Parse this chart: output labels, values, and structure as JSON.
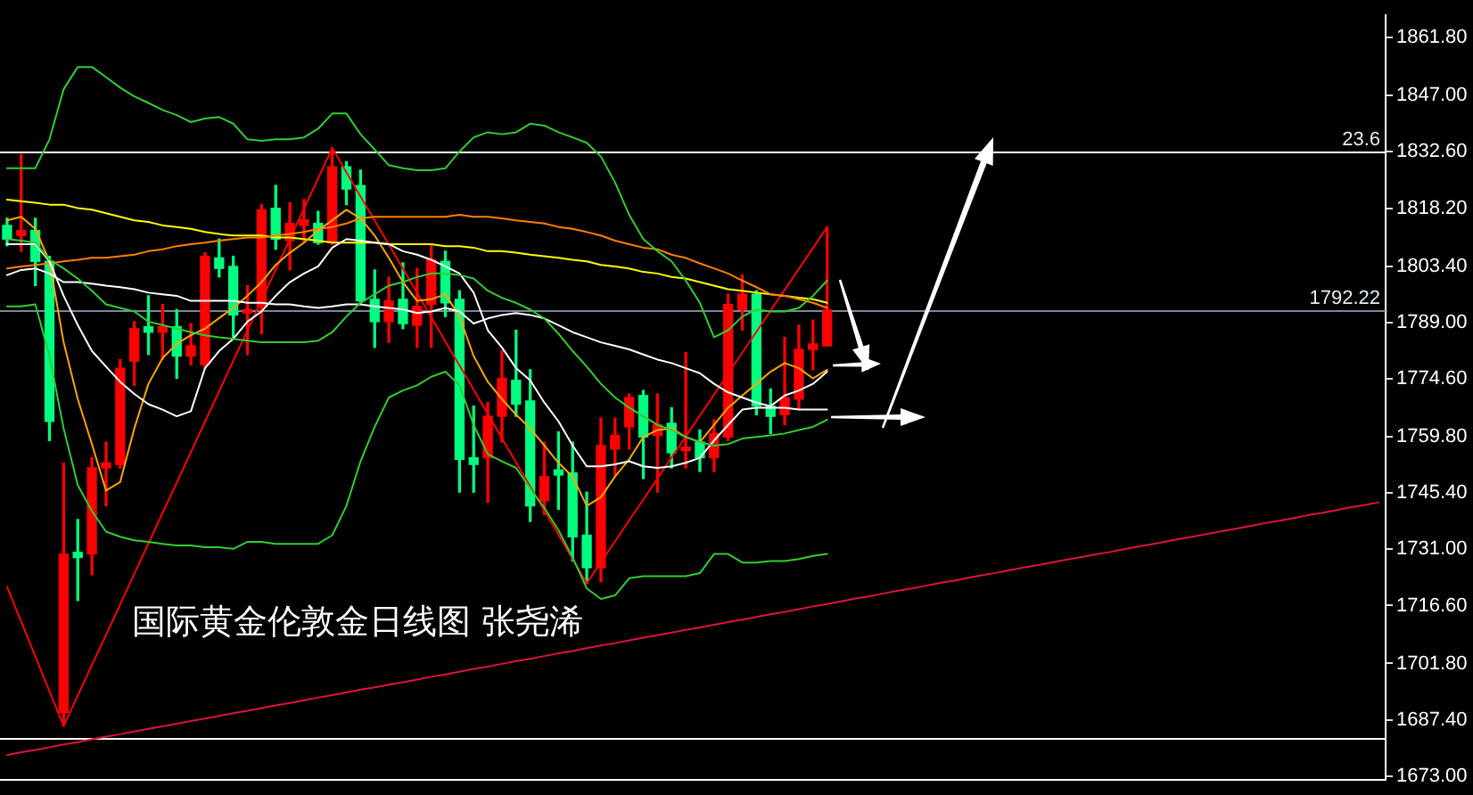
{
  "chart_data": {
    "type": "candlestick",
    "categories": [
      null,
      null,
      null,
      null,
      null,
      null,
      null,
      null,
      null,
      null,
      null,
      null,
      null,
      null,
      null,
      null,
      null,
      null,
      null,
      null,
      null,
      null,
      null,
      null,
      null,
      null,
      null,
      null,
      null,
      null,
      null,
      null,
      null,
      null,
      null,
      null,
      null,
      null,
      null,
      null,
      null,
      null,
      null,
      null,
      null,
      null,
      null,
      null,
      null,
      null,
      null,
      null,
      null,
      null,
      null,
      null,
      null,
      null,
      null,
      null,
      null,
      null,
      null,
      null,
      null,
      null,
      null,
      null,
      null,
      null,
      null,
      null,
      null,
      null,
      null,
      null,
      null,
      null,
      null,
      null,
      null,
      null,
      null,
      null,
      null,
      null,
      null,
      null,
      null,
      null,
      null,
      null,
      null,
      null,
      null,
      null,
      null,
      null
    ],
    "ohlc": [
      [
        1813.8,
        1815.6,
        1808.6,
        1810.3
      ],
      [
        1811.2,
        1831.9,
        1807.2,
        1812.5
      ],
      [
        1812.5,
        1815.6,
        1798.4,
        1804.6
      ],
      [
        1804.6,
        1805.9,
        1758.8,
        1763.7
      ],
      [
        1689.3,
        1753.1,
        1685.8,
        1729.8
      ],
      [
        1730.2,
        1738.6,
        1717.9,
        1728.9
      ],
      [
        1729.8,
        1754.4,
        1724.5,
        1751.8
      ],
      [
        1751.8,
        1758.4,
        1742.1,
        1753.1
      ],
      [
        1752.7,
        1779.5,
        1751.8,
        1777.3
      ],
      [
        1779.1,
        1789.2,
        1772.9,
        1787.4
      ],
      [
        1787.9,
        1795.8,
        1780.8,
        1786.5
      ],
      [
        1786.5,
        1793.6,
        1779.5,
        1787.9
      ],
      [
        1787.9,
        1792.3,
        1774.7,
        1780.4
      ],
      [
        1780.4,
        1788.7,
        1778.2,
        1783.0
      ],
      [
        1778.2,
        1806.8,
        1777.3,
        1805.9
      ],
      [
        1805.5,
        1810.3,
        1800.6,
        1802.8
      ],
      [
        1803.3,
        1805.9,
        1785.2,
        1790.9
      ],
      [
        1791.4,
        1798.4,
        1780.8,
        1792.3
      ],
      [
        1793.1,
        1819.1,
        1786.1,
        1817.8
      ],
      [
        1818.2,
        1824.0,
        1807.7,
        1810.3
      ],
      [
        1809.9,
        1819.6,
        1802.4,
        1814.3
      ],
      [
        1813.8,
        1820.4,
        1809.4,
        1815.2
      ],
      [
        1814.3,
        1817.4,
        1809.0,
        1809.4
      ],
      [
        1809.4,
        1833.6,
        1809.0,
        1828.8
      ],
      [
        1828.8,
        1830.1,
        1819.1,
        1823.1
      ],
      [
        1824.0,
        1827.9,
        1793.6,
        1794.5
      ],
      [
        1794.9,
        1802.4,
        1782.6,
        1789.2
      ],
      [
        1789.2,
        1800.6,
        1783.9,
        1794.5
      ],
      [
        1794.9,
        1804.2,
        1787.4,
        1788.7
      ],
      [
        1788.3,
        1802.8,
        1782.6,
        1793.1
      ],
      [
        1793.6,
        1808.6,
        1782.6,
        1805.0
      ],
      [
        1804.6,
        1807.2,
        1790.5,
        1794.0
      ],
      [
        1794.9,
        1797.1,
        1745.6,
        1754.0
      ],
      [
        1754.4,
        1767.6,
        1745.6,
        1752.7
      ],
      [
        1754.4,
        1768.5,
        1743.0,
        1765.0
      ],
      [
        1765.0,
        1781.7,
        1758.4,
        1774.7
      ],
      [
        1774.2,
        1787.0,
        1765.0,
        1768.1
      ],
      [
        1768.9,
        1776.9,
        1738.1,
        1742.1
      ],
      [
        1743.4,
        1758.4,
        1739.9,
        1749.6
      ],
      [
        1751.3,
        1761.0,
        1741.2,
        1750.0
      ],
      [
        1750.5,
        1758.4,
        1728.0,
        1734.2
      ],
      [
        1734.6,
        1745.6,
        1722.3,
        1726.3
      ],
      [
        1726.3,
        1764.5,
        1722.7,
        1757.5
      ],
      [
        1756.6,
        1764.5,
        1750.0,
        1760.1
      ],
      [
        1762.3,
        1770.7,
        1756.6,
        1769.8
      ],
      [
        1770.3,
        1771.6,
        1749.1,
        1759.7
      ],
      [
        1760.1,
        1770.7,
        1745.6,
        1762.8
      ],
      [
        1763.2,
        1767.2,
        1751.8,
        1755.7
      ],
      [
        1756.2,
        1781.3,
        1751.8,
        1757.1
      ],
      [
        1758.4,
        1761.5,
        1750.9,
        1754.4
      ],
      [
        1754.4,
        1764.1,
        1750.9,
        1760.6
      ],
      [
        1759.7,
        1796.2,
        1758.8,
        1793.6
      ],
      [
        1792.3,
        1801.1,
        1787.0,
        1796.2
      ],
      [
        1796.2,
        1797.1,
        1765.4,
        1767.6
      ],
      [
        1767.6,
        1772.0,
        1760.6,
        1765.0
      ],
      [
        1765.4,
        1785.2,
        1762.8,
        1769.8
      ],
      [
        1769.4,
        1788.3,
        1766.7,
        1782.1
      ],
      [
        1782.1,
        1789.6,
        1776.9,
        1783.5
      ],
      [
        1783.0,
        1813.4,
        1783.0,
        1792.2
      ],
      null,
      null,
      null,
      null,
      null,
      null,
      null,
      null,
      null,
      null,
      null,
      null,
      null,
      null,
      null,
      null,
      null,
      null,
      null,
      null,
      null,
      null,
      null,
      null,
      null,
      null,
      null,
      null,
      null,
      null,
      null,
      null,
      null,
      null,
      null,
      null,
      null,
      null,
      null
    ],
    "colors": [
      "#00ff7f",
      "#ff0000",
      "#00ff7f",
      "#00ff7f",
      "#ff0000",
      "#00ff7f",
      "#ff0000",
      "#ff0000",
      "#ff0000",
      "#ff0000",
      "#00ff7f",
      "#ff0000",
      "#00ff7f",
      "#ff0000",
      "#ff0000",
      "#00ff7f",
      "#00ff7f",
      "#ff0000",
      "#ff0000",
      "#00ff7f",
      "#ff0000",
      "#ff0000",
      "#00ff7f",
      "#ff0000",
      "#00ff7f",
      "#00ff7f",
      "#00ff7f",
      "#ff0000",
      "#00ff7f",
      "#ff0000",
      "#ff0000",
      "#00ff7f",
      "#00ff7f",
      "#00ff7f",
      "#ff0000",
      "#ff0000",
      "#00ff7f",
      "#00ff7f",
      "#ff0000",
      "#00ff7f",
      "#00ff7f",
      "#00ff7f",
      "#ff0000",
      "#ff0000",
      "#ff0000",
      "#00ff7f",
      "#ff0000",
      "#00ff7f",
      "#ff0000",
      "#00ff7f",
      "#ff0000",
      "#ff0000",
      "#ff0000",
      "#00ff7f",
      "#00ff7f",
      "#ff0000",
      "#ff0000",
      "#ff0000",
      "#ff0000",
      null,
      null,
      null,
      null,
      null,
      null,
      null,
      null,
      null,
      null,
      null,
      null,
      null,
      null,
      null,
      null,
      null,
      null,
      null,
      null,
      null,
      null,
      null,
      null,
      null,
      null,
      null,
      null,
      null,
      null,
      null,
      null,
      null,
      null,
      null,
      null,
      null,
      null,
      null
    ],
    "series": [
      {
        "type": "line",
        "color": "#32cd32",
        "values": [
          1828.4,
          1828.4,
          1828.4,
          1835.8,
          1848.6,
          1854.3,
          1854.3,
          1851.7,
          1849.0,
          1846.8,
          1845.1,
          1843.3,
          1842.0,
          1840.2,
          1841.1,
          1841.5,
          1839.8,
          1835.8,
          1835.4,
          1835.8,
          1835.8,
          1836.3,
          1838.5,
          1842.4,
          1842.4,
          1837.1,
          1833.2,
          1829.2,
          1828.4,
          1827.9,
          1827.9,
          1828.4,
          1832.7,
          1836.3,
          1837.6,
          1837.1,
          1837.6,
          1839.8,
          1839.3,
          1837.6,
          1836.3,
          1834.9,
          1831.4,
          1824.8,
          1816.5,
          1810.3,
          1807.2,
          1804.6,
          1799.7,
          1794.0,
          1785.2,
          1787.0,
          1790.5,
          1792.3,
          1791.8,
          1791.8,
          1792.7,
          1795.8,
          1799.7,
          null,
          null,
          null,
          null,
          null,
          null,
          null,
          null,
          null,
          null,
          null,
          null,
          null,
          null,
          null,
          null,
          null,
          null,
          null,
          null,
          null,
          null,
          null,
          null,
          null,
          null,
          null,
          null,
          null,
          null,
          null,
          null,
          null,
          null,
          null,
          null,
          null,
          null,
          null
        ]
      },
      {
        "type": "line",
        "color": "#32cd32",
        "values": [
          1810.3,
          1809.9,
          1809.4,
          1805.0,
          1802.8,
          1800.2,
          1797.1,
          1793.6,
          1792.7,
          1791.8,
          1789.2,
          1788.3,
          1787.4,
          1786.5,
          1785.7,
          1785.2,
          1784.8,
          1784.3,
          1783.9,
          1783.9,
          1783.9,
          1783.9,
          1784.3,
          1786.5,
          1790.5,
          1794.0,
          1796.2,
          1798.4,
          1799.3,
          1800.6,
          1801.5,
          1801.5,
          1801.1,
          1800.2,
          1797.1,
          1795.3,
          1794.0,
          1792.3,
          1790.0,
          1786.1,
          1781.7,
          1777.7,
          1773.3,
          1769.8,
          1767.2,
          1765.0,
          1762.8,
          1761.5,
          1759.7,
          1758.4,
          1757.5,
          1757.9,
          1759.3,
          1759.7,
          1760.1,
          1760.6,
          1761.5,
          1762.3,
          1764.1,
          null,
          null,
          null,
          null,
          null,
          null,
          null,
          null,
          null,
          null,
          null,
          null,
          null,
          null,
          null,
          null,
          null,
          null,
          null,
          null,
          null,
          null,
          null,
          null,
          null,
          null,
          null,
          null,
          null,
          null,
          null,
          null,
          null,
          null,
          null,
          null,
          null,
          null,
          null
        ]
      },
      {
        "type": "line",
        "color": "#32cd32",
        "values": [
          1793.1,
          1793.1,
          1793.6,
          1780.4,
          1761.9,
          1747.4,
          1740.8,
          1735.5,
          1734.2,
          1733.3,
          1732.9,
          1732.4,
          1732.0,
          1732.0,
          1731.5,
          1731.5,
          1731.1,
          1732.9,
          1732.9,
          1732.4,
          1732.4,
          1732.4,
          1732.4,
          1734.6,
          1742.1,
          1753.5,
          1762.3,
          1769.8,
          1771.6,
          1772.9,
          1775.1,
          1776.4,
          1772.9,
          1762.8,
          1755.3,
          1753.5,
          1751.8,
          1746.5,
          1741.6,
          1735.9,
          1728.9,
          1721.0,
          1718.3,
          1719.2,
          1723.6,
          1724.1,
          1724.1,
          1724.1,
          1724.1,
          1724.9,
          1729.8,
          1729.8,
          1727.6,
          1727.6,
          1728.0,
          1728.0,
          1728.5,
          1729.3,
          1729.8,
          null,
          null,
          null,
          null,
          null,
          null,
          null,
          null,
          null,
          null,
          null,
          null,
          null,
          null,
          null,
          null,
          null,
          null,
          null,
          null,
          null,
          null,
          null,
          null,
          null,
          null,
          null,
          null,
          null,
          null,
          null,
          null,
          null,
          null,
          null,
          null,
          null,
          null,
          null
        ]
      },
      {
        "type": "line",
        "color": "#ffffff",
        "values": [
          1801.1,
          1802.4,
          1802.8,
          1801.5,
          1799.3,
          1799.3,
          1798.9,
          1798.4,
          1798.0,
          1797.5,
          1796.6,
          1796.2,
          1795.8,
          1794.5,
          1794.5,
          1794.5,
          1794.5,
          1794.0,
          1794.0,
          1793.6,
          1793.6,
          1793.1,
          1792.7,
          1793.1,
          1793.6,
          1793.6,
          1793.1,
          1792.7,
          1792.3,
          1791.4,
          1791.8,
          1792.7,
          1791.8,
          1788.7,
          1790.0,
          1790.9,
          1791.4,
          1790.9,
          1790.0,
          1788.3,
          1786.5,
          1785.2,
          1783.9,
          1783.0,
          1782.1,
          1780.8,
          1779.5,
          1778.6,
          1777.3,
          1776.0,
          1773.3,
          1771.1,
          1769.8,
          1768.5,
          1767.6,
          1770.3,
          1771.6,
          1773.3,
          1776.4,
          null,
          null,
          null,
          null,
          null,
          null,
          null,
          null,
          null,
          null,
          null,
          null,
          null,
          null,
          null,
          null,
          null,
          null,
          null,
          null,
          null,
          null,
          null,
          null,
          null,
          null,
          null,
          null,
          null,
          null,
          null,
          null,
          null,
          null,
          null,
          null,
          null,
          null,
          null
        ]
      },
      {
        "type": "line",
        "color": "#ffffff",
        "values": [
          1809.0,
          1809.0,
          1809.0,
          1804.6,
          1795.8,
          1788.3,
          1781.7,
          1777.7,
          1773.8,
          1770.7,
          1768.1,
          1766.7,
          1765.0,
          1766.3,
          1777.3,
          1781.7,
          1784.8,
          1789.2,
          1791.8,
          1795.8,
          1799.3,
          1801.5,
          1803.3,
          1808.1,
          1810.3,
          1809.9,
          1809.4,
          1809.0,
          1807.2,
          1806.3,
          1805.0,
          1803.3,
          1801.5,
          1796.6,
          1787.0,
          1782.6,
          1777.3,
          1774.2,
          1768.5,
          1763.7,
          1757.5,
          1752.2,
          1752.2,
          1752.7,
          1753.5,
          1752.2,
          1751.8,
          1752.2,
          1753.1,
          1754.4,
          1758.8,
          1762.8,
          1766.7,
          1767.2,
          1767.2,
          1767.2,
          1766.7,
          1766.7,
          1766.7,
          null,
          null,
          null,
          null,
          null,
          null,
          null,
          null,
          null,
          null,
          null,
          null,
          null,
          null,
          null,
          null,
          null,
          null,
          null,
          null,
          null,
          null,
          null,
          null,
          null,
          null,
          null,
          null,
          null,
          null,
          null,
          null,
          null,
          null,
          null,
          null,
          null,
          null,
          null
        ]
      },
      {
        "type": "line",
        "color": "#ffa500",
        "values": [
          1815.1,
          1816.0,
          1812.9,
          1804.6,
          1783.9,
          1769.4,
          1757.9,
          1746.0,
          1748.2,
          1761.9,
          1773.3,
          1779.9,
          1783.5,
          1785.7,
          1787.4,
          1790.1,
          1792.7,
          1795.8,
          1799.3,
          1803.7,
          1806.8,
          1809.4,
          1812.5,
          1815.1,
          1817.8,
          1815.6,
          1811.2,
          1805.5,
          1799.3,
          1794.5,
          1794.9,
          1796.2,
          1790.5,
          1780.4,
          1773.8,
          1769.4,
          1765.4,
          1761.9,
          1757.5,
          1753.1,
          1749.6,
          1742.1,
          1744.3,
          1749.6,
          1754.0,
          1759.7,
          1761.5,
          1761.9,
          1759.7,
          1758.4,
          1762.8,
          1767.2,
          1770.3,
          1773.3,
          1776.4,
          1778.6,
          1777.3,
          1774.7,
          1776.9,
          null,
          null,
          null,
          null,
          null,
          null,
          null,
          null,
          null,
          null,
          null,
          null,
          null,
          null,
          null,
          null,
          null,
          null,
          null,
          null,
          null,
          null,
          null,
          null,
          null,
          null,
          null,
          null,
          null,
          null,
          null,
          null,
          null,
          null,
          null,
          null,
          null,
          null,
          null
        ]
      },
      {
        "type": "line",
        "color": "#ff7f00",
        "values": [
          1802.8,
          1803.3,
          1803.7,
          1804.1,
          1804.6,
          1805.0,
          1805.5,
          1805.5,
          1805.9,
          1806.3,
          1807.2,
          1807.7,
          1808.5,
          1809.0,
          1809.4,
          1809.9,
          1810.3,
          1810.7,
          1810.7,
          1811.2,
          1811.6,
          1812.1,
          1812.9,
          1813.4,
          1814.3,
          1815.6,
          1816.0,
          1816.0,
          1816.0,
          1816.0,
          1816.0,
          1816.0,
          1816.5,
          1816.0,
          1816.0,
          1815.6,
          1815.1,
          1814.7,
          1814.3,
          1813.4,
          1812.9,
          1812.1,
          1811.2,
          1809.9,
          1809.0,
          1808.1,
          1807.7,
          1806.3,
          1805.5,
          1804.1,
          1802.8,
          1801.5,
          1799.7,
          1798.0,
          1796.2,
          1795.8,
          1794.9,
          1794.0,
          1792.7,
          null,
          null,
          null,
          null,
          null,
          null,
          null,
          null,
          null,
          null,
          null,
          null,
          null,
          null,
          null,
          null,
          null,
          null,
          null,
          null,
          null,
          null,
          null,
          null,
          null,
          null,
          null,
          null,
          null,
          null,
          null,
          null,
          null,
          null,
          null,
          null,
          null,
          null,
          null
        ]
      },
      {
        "type": "line",
        "color": "#ffff00",
        "values": [
          1820.4,
          1820.0,
          1819.6,
          1819.1,
          1819.1,
          1818.2,
          1817.8,
          1816.9,
          1816.0,
          1815.1,
          1814.7,
          1813.8,
          1813.4,
          1812.9,
          1812.1,
          1811.6,
          1811.2,
          1811.2,
          1811.2,
          1810.7,
          1810.7,
          1810.3,
          1809.9,
          1809.4,
          1809.4,
          1809.4,
          1809.4,
          1809.0,
          1809.0,
          1809.0,
          1809.0,
          1808.5,
          1808.5,
          1808.1,
          1807.2,
          1807.2,
          1806.8,
          1806.3,
          1805.9,
          1805.5,
          1805.0,
          1804.6,
          1803.7,
          1803.3,
          1802.8,
          1801.9,
          1801.5,
          1800.6,
          1800.2,
          1799.3,
          1798.4,
          1797.5,
          1797.1,
          1796.6,
          1796.2,
          1795.8,
          1795.3,
          1794.9,
          1794.0,
          null,
          null,
          null,
          null,
          null,
          null,
          null,
          null,
          null,
          null,
          null,
          null,
          null,
          null,
          null,
          null,
          null,
          null,
          null,
          null,
          null,
          null,
          null,
          null,
          null,
          null,
          null,
          null,
          null,
          null,
          null,
          null,
          null,
          null,
          null,
          null,
          null,
          null,
          null
        ]
      },
      {
        "type": "line",
        "color": "#ff0000",
        "values": [
          1721.4,
          1712.5,
          1703.6,
          1694.7,
          1685.8,
          1693.6,
          1701.4,
          1709.1,
          1716.9,
          1724.7,
          1732.5,
          1740.3,
          1748.0,
          1755.8,
          1763.6,
          1771.4,
          1779.2,
          1786.9,
          1794.7,
          1802.5,
          1810.3,
          1818.1,
          1825.8,
          1833.6,
          1827.4,
          1821.2,
          1815.1,
          1808.9,
          1802.7,
          1796.5,
          1790.3,
          1784.1,
          1778.0,
          1771.8,
          1765.6,
          1759.4,
          1753.2,
          1747.0,
          1740.9,
          1734.7,
          1728.5,
          1722.3,
          1727.7,
          1733.0,
          1738.4,
          1743.7,
          1749.1,
          1754.5,
          1759.8,
          1765.2,
          1770.5,
          1775.9,
          1781.3,
          1786.6,
          1792.0,
          1797.3,
          1802.7,
          1808.0,
          1813.4,
          null,
          null,
          null,
          null,
          null,
          null,
          null,
          null,
          null,
          null,
          null,
          null,
          null,
          null,
          null,
          null,
          null,
          null,
          null,
          null,
          null,
          null,
          null,
          null,
          null,
          null,
          null,
          null,
          null,
          null,
          null,
          null,
          null,
          null,
          null,
          null,
          null,
          null,
          null
        ]
      },
      {
        "type": "line",
        "color": "#dc143c",
        "values": [
          1678.4,
          1679.1,
          1679.7,
          1680.4,
          1681.1,
          1681.7,
          1682.4,
          1683.1,
          1683.7,
          1684.4,
          1685.1,
          1685.7,
          1686.4,
          1687.1,
          1687.7,
          1688.4,
          1689.1,
          1689.7,
          1690.4,
          1691.1,
          1691.7,
          1692.4,
          1693.1,
          1693.7,
          1694.4,
          1695.1,
          1695.7,
          1696.4,
          1697.0,
          1697.7,
          1698.4,
          1699.0,
          1699.7,
          1700.4,
          1701.0,
          1701.7,
          1702.4,
          1703.0,
          1703.7,
          1704.4,
          1705.0,
          1705.7,
          1706.4,
          1707.0,
          1707.7,
          1708.4,
          1709.0,
          1709.7,
          1710.4,
          1711.0,
          1711.7,
          1712.4,
          1713.0,
          1713.7,
          1714.4,
          1715.0,
          1715.7,
          1716.4,
          1717.0,
          1717.7,
          1718.4,
          1719.0,
          1719.7,
          1720.4,
          1721.0,
          1721.7,
          1722.4,
          1723.0,
          1723.7,
          1724.4,
          1725.0,
          1725.7,
          1726.4,
          1727.0,
          1727.7,
          1728.4,
          1729.0,
          1729.7,
          1730.3,
          1731.0,
          1731.7,
          1732.3,
          1733.0,
          1733.7,
          1734.3,
          1735.0,
          1735.7,
          1736.3,
          1737.0,
          1737.7,
          1738.3,
          1739.0,
          1739.7,
          1740.3,
          1741.0,
          1741.7,
          1742.3,
          1743.0
        ]
      }
    ],
    "ylim": [
      1672.1,
      1867.5
    ],
    "yticks": [
      {
        "value": 1861.8,
        "label": "1861.80"
      },
      {
        "value": 1847,
        "label": "1847.00"
      },
      {
        "value": 1832.6,
        "label": "1832.60"
      },
      {
        "value": 1818.2,
        "label": "1818.20"
      },
      {
        "value": 1803.4,
        "label": "1803.40"
      },
      {
        "value": 1789,
        "label": "1789.00"
      },
      {
        "value": 1774.6,
        "label": "1774.60"
      },
      {
        "value": 1759.8,
        "label": "1759.80"
      },
      {
        "value": 1745.4,
        "label": "1745.40"
      },
      {
        "value": 1731,
        "label": "1731.00"
      },
      {
        "value": 1716.6,
        "label": "1716.60"
      },
      {
        "value": 1701.8,
        "label": "1701.80"
      },
      {
        "value": 1687.4,
        "label": "1687.40"
      },
      {
        "value": 1673,
        "label": "1673.00"
      }
    ],
    "tick_labels": "y",
    "grid": false,
    "legend": false,
    "marker": "none",
    "ref_lines": [
      {
        "axis": "y",
        "value": 1832.7,
        "color": "#ffffff"
      },
      {
        "axis": "y",
        "value": 1792.22,
        "label": "1792.22",
        "color": "#778899"
      },
      {
        "axis": "y",
        "value": 1682.7,
        "color": "#ffffff"
      }
    ],
    "annotations": [
      "国际黄金伦敦金日线图 张尧浠",
      {
        "text": "23.6",
        "y": 1832.7
      }
    ]
  }
}
